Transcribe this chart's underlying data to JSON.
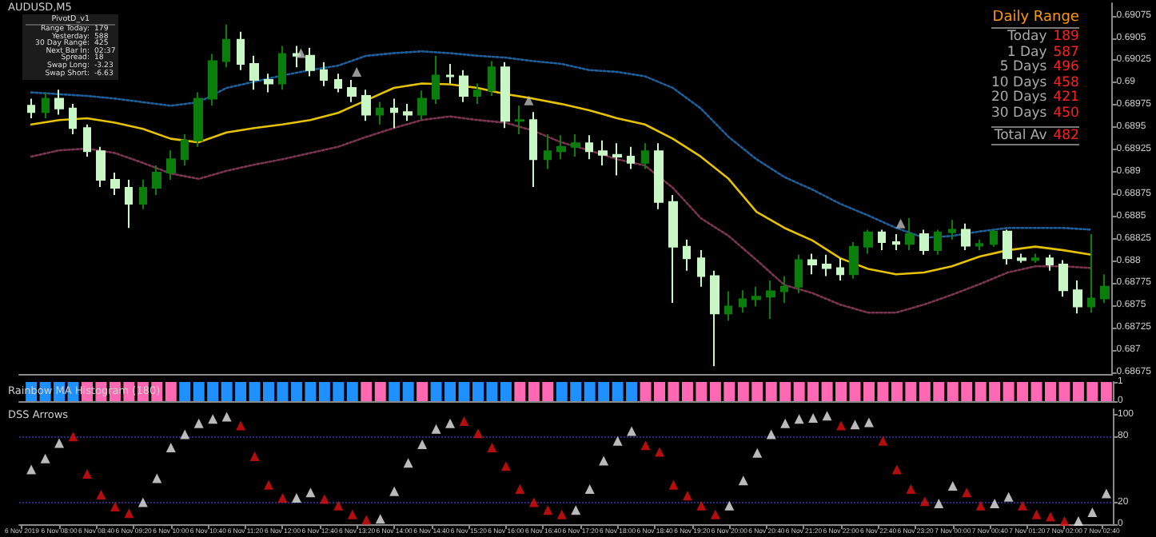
{
  "chart_data": [
    {
      "type": "candlestick",
      "title": "AUDUSD,M5",
      "tick_labels": "y",
      "xlim": [
        "2019-11-06T07:17",
        "2019-11-07T02:52"
      ],
      "ylim": [
        0.68672,
        0.69089
      ],
      "yticks": [
        0.68675,
        0.687,
        0.68725,
        0.6875,
        0.68775,
        0.688,
        0.68825,
        0.6885,
        0.68875,
        0.689,
        0.68925,
        0.6895,
        0.68975,
        0.69,
        0.69025,
        0.6905,
        0.69075
      ],
      "x": [
        "2019-11-06T07:30",
        "2019-11-06T07:45",
        "2019-11-06T08:00",
        "2019-11-06T08:15",
        "2019-11-06T08:30",
        "2019-11-06T08:45",
        "2019-11-06T09:00",
        "2019-11-06T09:15",
        "2019-11-06T09:30",
        "2019-11-06T09:45",
        "2019-11-06T10:00",
        "2019-11-06T10:15",
        "2019-11-06T10:30",
        "2019-11-06T10:45",
        "2019-11-06T11:00",
        "2019-11-06T11:15",
        "2019-11-06T11:30",
        "2019-11-06T11:45",
        "2019-11-06T12:00",
        "2019-11-06T12:15",
        "2019-11-06T12:30",
        "2019-11-06T12:45",
        "2019-11-06T13:00",
        "2019-11-06T13:15",
        "2019-11-06T13:30",
        "2019-11-06T13:45",
        "2019-11-06T14:00",
        "2019-11-06T14:15",
        "2019-11-06T14:30",
        "2019-11-06T14:45",
        "2019-11-06T15:00",
        "2019-11-06T15:15",
        "2019-11-06T15:30",
        "2019-11-06T15:45",
        "2019-11-06T16:00",
        "2019-11-06T16:15",
        "2019-11-06T16:30",
        "2019-11-06T16:45",
        "2019-11-06T17:00",
        "2019-11-06T17:15",
        "2019-11-06T17:30",
        "2019-11-06T17:45",
        "2019-11-06T18:00",
        "2019-11-06T18:15",
        "2019-11-06T18:30",
        "2019-11-06T18:45",
        "2019-11-06T19:00",
        "2019-11-06T19:15",
        "2019-11-06T19:30",
        "2019-11-06T19:45",
        "2019-11-06T20:00",
        "2019-11-06T20:15",
        "2019-11-06T20:30",
        "2019-11-06T20:45",
        "2019-11-06T21:00",
        "2019-11-06T21:15",
        "2019-11-06T21:30",
        "2019-11-06T21:45",
        "2019-11-06T22:00",
        "2019-11-06T22:15",
        "2019-11-06T22:30",
        "2019-11-06T22:45",
        "2019-11-06T23:00",
        "2019-11-06T23:15",
        "2019-11-06T23:30",
        "2019-11-06T23:45",
        "2019-11-07T00:00",
        "2019-11-07T00:15",
        "2019-11-07T00:30",
        "2019-11-07T00:45",
        "2019-11-07T01:00",
        "2019-11-07T01:15",
        "2019-11-07T01:30",
        "2019-11-07T01:45",
        "2019-11-07T02:00",
        "2019-11-07T02:15",
        "2019-11-07T02:30",
        "2019-11-07T02:45"
      ],
      "series": [
        {
          "type": "line",
          "color": "#e6c200",
          "line_style": "solid",
          "marker": "none",
          "x": [
            "2019-11-06T07:30",
            "2019-11-06T08:00",
            "2019-11-06T08:30",
            "2019-11-06T09:00",
            "2019-11-06T09:30",
            "2019-11-06T10:00",
            "2019-11-06T10:30",
            "2019-11-06T11:00",
            "2019-11-06T11:30",
            "2019-11-06T12:00",
            "2019-11-06T12:30",
            "2019-11-06T13:00",
            "2019-11-06T13:30",
            "2019-11-06T14:00",
            "2019-11-06T14:30",
            "2019-11-06T15:00",
            "2019-11-06T15:30",
            "2019-11-06T16:00",
            "2019-11-06T16:30",
            "2019-11-06T17:00",
            "2019-11-06T17:30",
            "2019-11-06T18:00",
            "2019-11-06T18:30",
            "2019-11-06T19:00",
            "2019-11-06T19:30",
            "2019-11-06T20:00",
            "2019-11-06T20:30",
            "2019-11-06T21:00",
            "2019-11-06T21:30",
            "2019-11-06T22:00",
            "2019-11-06T22:30",
            "2019-11-06T23:00",
            "2019-11-06T23:30",
            "2019-11-07T00:00",
            "2019-11-07T00:30",
            "2019-11-07T01:00",
            "2019-11-07T01:30",
            "2019-11-07T02:00",
            "2019-11-07T02:30"
          ],
          "values": [
            0.68953,
            0.68958,
            0.6896,
            0.68955,
            0.68948,
            0.68937,
            0.68933,
            0.68944,
            0.68949,
            0.68953,
            0.68958,
            0.68966,
            0.6898,
            0.68994,
            0.68999,
            0.68998,
            0.68994,
            0.68987,
            0.68982,
            0.68976,
            0.68969,
            0.6896,
            0.68953,
            0.68937,
            0.68917,
            0.68892,
            0.68855,
            0.68837,
            0.68823,
            0.68803,
            0.68791,
            0.68785,
            0.68787,
            0.68794,
            0.68805,
            0.68812,
            0.68816,
            0.68812,
            0.68807
          ]
        },
        {
          "type": "line",
          "color": "#1f5f9a",
          "line_style": "dotted",
          "marker": "none",
          "x": [
            "2019-11-06T07:30",
            "2019-11-06T08:00",
            "2019-11-06T08:30",
            "2019-11-06T09:00",
            "2019-11-06T09:30",
            "2019-11-06T10:00",
            "2019-11-06T10:30",
            "2019-11-06T11:00",
            "2019-11-06T11:30",
            "2019-11-06T12:00",
            "2019-11-06T12:30",
            "2019-11-06T13:00",
            "2019-11-06T13:30",
            "2019-11-06T14:00",
            "2019-11-06T14:30",
            "2019-11-06T15:00",
            "2019-11-06T15:30",
            "2019-11-06T16:00",
            "2019-11-06T16:30",
            "2019-11-06T17:00",
            "2019-11-06T17:30",
            "2019-11-06T18:00",
            "2019-11-06T18:30",
            "2019-11-06T19:00",
            "2019-11-06T19:30",
            "2019-11-06T20:00",
            "2019-11-06T20:30",
            "2019-11-06T21:00",
            "2019-11-06T21:30",
            "2019-11-06T22:00",
            "2019-11-06T22:30",
            "2019-11-06T23:00",
            "2019-11-06T23:30",
            "2019-11-07T00:00",
            "2019-11-07T00:30",
            "2019-11-07T01:00",
            "2019-11-07T01:30",
            "2019-11-07T02:00",
            "2019-11-07T02:30"
          ],
          "values": [
            0.68989,
            0.68987,
            0.68985,
            0.68982,
            0.68978,
            0.68974,
            0.68978,
            0.68994,
            0.69001,
            0.69008,
            0.69014,
            0.69019,
            0.6903,
            0.69033,
            0.69035,
            0.69033,
            0.6903,
            0.69028,
            0.69024,
            0.69021,
            0.69014,
            0.69012,
            0.69007,
            0.68994,
            0.68971,
            0.68939,
            0.68914,
            0.68894,
            0.6888,
            0.68864,
            0.68851,
            0.68837,
            0.68826,
            0.68828,
            0.68833,
            0.68837,
            0.68837,
            0.68837,
            0.68835
          ]
        },
        {
          "type": "line",
          "color": "#7a3550",
          "line_style": "dotted",
          "marker": "none",
          "x": [
            "2019-11-06T07:30",
            "2019-11-06T08:00",
            "2019-11-06T08:30",
            "2019-11-06T09:00",
            "2019-11-06T09:30",
            "2019-11-06T10:00",
            "2019-11-06T10:30",
            "2019-11-06T11:00",
            "2019-11-06T11:30",
            "2019-11-06T12:00",
            "2019-11-06T12:30",
            "2019-11-06T13:00",
            "2019-11-06T13:30",
            "2019-11-06T14:00",
            "2019-11-06T14:30",
            "2019-11-06T15:00",
            "2019-11-06T15:30",
            "2019-11-06T16:00",
            "2019-11-06T16:30",
            "2019-11-06T17:00",
            "2019-11-06T17:30",
            "2019-11-06T18:00",
            "2019-11-06T18:30",
            "2019-11-06T19:00",
            "2019-11-06T19:30",
            "2019-11-06T20:00",
            "2019-11-06T20:30",
            "2019-11-06T21:00",
            "2019-11-06T21:30",
            "2019-11-06T22:00",
            "2019-11-06T22:30",
            "2019-11-06T23:00",
            "2019-11-06T23:30",
            "2019-11-07T00:00",
            "2019-11-07T00:30",
            "2019-11-07T01:00",
            "2019-11-07T01:30",
            "2019-11-07T02:00",
            "2019-11-07T02:30"
          ],
          "values": [
            0.68917,
            0.68924,
            0.68926,
            0.68921,
            0.6891,
            0.68898,
            0.68892,
            0.68901,
            0.68908,
            0.68914,
            0.68921,
            0.68928,
            0.68939,
            0.68949,
            0.68958,
            0.68962,
            0.68958,
            0.68955,
            0.68946,
            0.68933,
            0.68924,
            0.68914,
            0.68907,
            0.68882,
            0.68848,
            0.68828,
            0.68801,
            0.68773,
            0.68764,
            0.68751,
            0.68742,
            0.68742,
            0.68751,
            0.68762,
            0.68774,
            0.68787,
            0.68794,
            0.68794,
            0.68792
          ]
        },
        {
          "type": "candlestick",
          "colors": [
            "#c8f7c5",
            "#0b7d0b",
            "#c8f7c5",
            "#c8f7c5",
            "#c8f7c5",
            "#c8f7c5",
            "#c8f7c5",
            "#c8f7c5",
            "#0b7d0b",
            "#0b7d0b",
            "#0b7d0b",
            "#0b7d0b",
            "#0b7d0b",
            "#0b7d0b",
            "#0b7d0b",
            "#c8f7c5",
            "#c8f7c5",
            "#c8f7c5",
            "#0b7d0b",
            "#c8f7c5",
            "#c8f7c5",
            "#c8f7c5",
            "#c8f7c5",
            "#c8f7c5",
            "#c8f7c5",
            "#0b7d0b",
            "#c8f7c5",
            "#c8f7c5",
            "#0b7d0b",
            "#0b7d0b",
            "#c8f7c5",
            "#c8f7c5",
            "#0b7d0b",
            "#0b7d0b",
            "#c8f7c5",
            "#0b7d0b",
            "#c8f7c5",
            "#0b7d0b",
            "#0b7d0b",
            "#0b7d0b",
            "#c8f7c5",
            "#c8f7c5",
            "#c8f7c5",
            "#c8f7c5",
            "#0b7d0b",
            "#c8f7c5",
            "#c8f7c5",
            "#c8f7c5",
            "#c8f7c5",
            "#c8f7c5",
            "#0b7d0b",
            "#0b7d0b",
            "#0b7d0b",
            "#0b7d0b",
            "#0b7d0b",
            "#0b7d0b",
            "#c8f7c5",
            "#c8f7c5",
            "#c8f7c5",
            "#0b7d0b",
            "#0b7d0b",
            "#c8f7c5",
            "#c8f7c5",
            "#0b7d0b",
            "#c8f7c5",
            "#0b7d0b",
            "#0b7d0b",
            "#c8f7c5",
            "#0b7d0b",
            "#0b7d0b",
            "#c8f7c5",
            "#c8f7c5",
            "#0b7d0b",
            "#c8f7c5",
            "#c8f7c5",
            "#c8f7c5",
            "#0b7d0b",
            "#0b7d0b"
          ],
          "ohlc": [
            [
              0.68974,
              0.68982,
              0.6896,
              0.68967
            ],
            [
              0.68967,
              0.68989,
              0.6896,
              0.68982
            ],
            [
              0.68982,
              0.68992,
              0.68964,
              0.68971
            ],
            [
              0.68971,
              0.68976,
              0.68942,
              0.68949
            ],
            [
              0.68949,
              0.68953,
              0.68917,
              0.68923
            ],
            [
              0.68923,
              0.68928,
              0.68883,
              0.68891
            ],
            [
              0.68891,
              0.68899,
              0.68874,
              0.68882
            ],
            [
              0.68882,
              0.68891,
              0.68837,
              0.68864
            ],
            [
              0.68864,
              0.68891,
              0.68858,
              0.68882
            ],
            [
              0.68882,
              0.68907,
              0.68874,
              0.68899
            ],
            [
              0.68899,
              0.68924,
              0.68891,
              0.68914
            ],
            [
              0.68914,
              0.68942,
              0.68907,
              0.68935
            ],
            [
              0.68935,
              0.68989,
              0.68928,
              0.68982
            ],
            [
              0.68982,
              0.69032,
              0.68974,
              0.69024
            ],
            [
              0.69024,
              0.69065,
              0.69017,
              0.69048
            ],
            [
              0.69048,
              0.69057,
              0.69014,
              0.69021
            ],
            [
              0.69021,
              0.6903,
              0.68992,
              0.69003
            ],
            [
              0.69003,
              0.6901,
              0.68989,
              0.68999
            ],
            [
              0.68999,
              0.69041,
              0.68992,
              0.69032
            ],
            [
              0.69032,
              0.69041,
              0.69017,
              0.6903
            ],
            [
              0.6903,
              0.69039,
              0.69007,
              0.69014
            ],
            [
              0.69014,
              0.69023,
              0.68996,
              0.69003
            ],
            [
              0.69003,
              0.6901,
              0.68989,
              0.68994
            ],
            [
              0.68994,
              0.69003,
              0.68978,
              0.68985
            ],
            [
              0.68985,
              0.68992,
              0.68957,
              0.68964
            ],
            [
              0.68964,
              0.68978,
              0.68953,
              0.68971
            ],
            [
              0.68971,
              0.68982,
              0.68949,
              0.68967
            ],
            [
              0.68967,
              0.68976,
              0.68957,
              0.68964
            ],
            [
              0.68964,
              0.68991,
              0.68958,
              0.68982
            ],
            [
              0.68982,
              0.6903,
              0.68976,
              0.69008
            ],
            [
              0.69008,
              0.69021,
              0.68999,
              0.69007
            ],
            [
              0.69007,
              0.69014,
              0.68978,
              0.68985
            ],
            [
              0.68985,
              0.68999,
              0.68976,
              0.68991
            ],
            [
              0.68991,
              0.69024,
              0.68985,
              0.69017
            ],
            [
              0.69017,
              0.69023,
              0.68949,
              0.68957
            ],
            [
              0.68957,
              0.68974,
              0.68942,
              0.68958
            ],
            [
              0.68958,
              0.68967,
              0.68883,
              0.68914
            ],
            [
              0.68914,
              0.68942,
              0.68903,
              0.68923
            ],
            [
              0.68923,
              0.68941,
              0.68914,
              0.68928
            ],
            [
              0.68928,
              0.68942,
              0.68917,
              0.68932
            ],
            [
              0.68932,
              0.68941,
              0.68914,
              0.68923
            ],
            [
              0.68923,
              0.68935,
              0.68907,
              0.68919
            ],
            [
              0.68919,
              0.68932,
              0.68896,
              0.68917
            ],
            [
              0.68917,
              0.68928,
              0.68903,
              0.6891
            ],
            [
              0.6891,
              0.68932,
              0.68903,
              0.68923
            ],
            [
              0.68923,
              0.68932,
              0.68858,
              0.68866
            ],
            [
              0.68866,
              0.68874,
              0.68753,
              0.68816
            ],
            [
              0.68816,
              0.68824,
              0.68789,
              0.68803
            ],
            [
              0.68803,
              0.68812,
              0.68771,
              0.68783
            ],
            [
              0.68783,
              0.68789,
              0.68682,
              0.68741
            ],
            [
              0.68741,
              0.68766,
              0.68733,
              0.68749
            ],
            [
              0.68749,
              0.68767,
              0.68742,
              0.68757
            ],
            [
              0.68757,
              0.68771,
              0.68749,
              0.6876
            ],
            [
              0.6876,
              0.68778,
              0.68735,
              0.68766
            ],
            [
              0.68766,
              0.68783,
              0.68753,
              0.68771
            ],
            [
              0.68771,
              0.68807,
              0.68764,
              0.68801
            ],
            [
              0.68801,
              0.68808,
              0.68785,
              0.68796
            ],
            [
              0.68796,
              0.68807,
              0.68783,
              0.68792
            ],
            [
              0.68792,
              0.68803,
              0.68778,
              0.68785
            ],
            [
              0.68785,
              0.68821,
              0.6878,
              0.68816
            ],
            [
              0.68816,
              0.68835,
              0.68808,
              0.68832
            ],
            [
              0.68832,
              0.68835,
              0.68812,
              0.68821
            ],
            [
              0.68821,
              0.6883,
              0.68812,
              0.68819
            ],
            [
              0.68819,
              0.68848,
              0.68812,
              0.6883
            ],
            [
              0.6883,
              0.68835,
              0.68807,
              0.68812
            ],
            [
              0.68812,
              0.68835,
              0.68807,
              0.68832
            ],
            [
              0.68832,
              0.68846,
              0.68824,
              0.68835
            ],
            [
              0.68835,
              0.68842,
              0.68812,
              0.68817
            ],
            [
              0.68817,
              0.68824,
              0.68812,
              0.68819
            ],
            [
              0.68819,
              0.68835,
              0.68816,
              0.68833
            ],
            [
              0.68833,
              0.68835,
              0.68796,
              0.68803
            ],
            [
              0.68803,
              0.68808,
              0.68798,
              0.68801
            ],
            [
              0.68801,
              0.68808,
              0.68798,
              0.68803
            ],
            [
              0.68803,
              0.68807,
              0.68789,
              0.68796
            ],
            [
              0.68796,
              0.68801,
              0.6876,
              0.68767
            ],
            [
              0.68767,
              0.68778,
              0.68741,
              0.68749
            ],
            [
              0.68749,
              0.6883,
              0.68742,
              0.68758
            ],
            [
              0.68758,
              0.68785,
              0.68753,
              0.68771
            ]
          ]
        },
        {
          "type": "scatter",
          "color": "#bbbbbb",
          "marker": "triangle",
          "x": [
            "2019-11-06T12:20",
            "2019-11-06T13:20",
            "2019-11-06T16:25",
            "2019-11-06T23:05"
          ],
          "values": [
            0.69033,
            0.69012,
            0.6898,
            0.68842
          ]
        }
      ]
    },
    {
      "type": "bar",
      "title": "Rainbow MA Histogram (180)",
      "tick_labels": "y",
      "xlim": [
        "2019-11-06T07:17",
        "2019-11-07T02:52"
      ],
      "ylim": [
        0,
        1
      ],
      "yticks": [
        0,
        1
      ],
      "x": [
        "2019-11-06T07:30",
        "2019-11-06T07:45",
        "2019-11-06T08:00",
        "2019-11-06T08:15",
        "2019-11-06T08:30",
        "2019-11-06T08:45",
        "2019-11-06T09:00",
        "2019-11-06T09:15",
        "2019-11-06T09:30",
        "2019-11-06T09:45",
        "2019-11-06T10:00",
        "2019-11-06T10:15",
        "2019-11-06T10:30",
        "2019-11-06T10:45",
        "2019-11-06T11:00",
        "2019-11-06T11:15",
        "2019-11-06T11:30",
        "2019-11-06T11:45",
        "2019-11-06T12:00",
        "2019-11-06T12:15",
        "2019-11-06T12:30",
        "2019-11-06T12:45",
        "2019-11-06T13:00",
        "2019-11-06T13:15",
        "2019-11-06T13:30",
        "2019-11-06T13:45",
        "2019-11-06T14:00",
        "2019-11-06T14:15",
        "2019-11-06T14:30",
        "2019-11-06T14:45",
        "2019-11-06T15:00",
        "2019-11-06T15:15",
        "2019-11-06T15:30",
        "2019-11-06T15:45",
        "2019-11-06T16:00",
        "2019-11-06T16:15",
        "2019-11-06T16:30",
        "2019-11-06T16:45",
        "2019-11-06T17:00",
        "2019-11-06T17:15",
        "2019-11-06T17:30",
        "2019-11-06T17:45",
        "2019-11-06T18:00",
        "2019-11-06T18:15",
        "2019-11-06T18:30",
        "2019-11-06T18:45",
        "2019-11-06T19:00",
        "2019-11-06T19:15",
        "2019-11-06T19:30",
        "2019-11-06T19:45",
        "2019-11-06T20:00",
        "2019-11-06T20:15",
        "2019-11-06T20:30",
        "2019-11-06T20:45",
        "2019-11-06T21:00",
        "2019-11-06T21:15",
        "2019-11-06T21:30",
        "2019-11-06T21:45",
        "2019-11-06T22:00",
        "2019-11-06T22:15",
        "2019-11-06T22:30",
        "2019-11-06T22:45",
        "2019-11-06T23:00",
        "2019-11-06T23:15",
        "2019-11-06T23:30",
        "2019-11-06T23:45",
        "2019-11-07T00:00",
        "2019-11-07T00:15",
        "2019-11-07T00:30",
        "2019-11-07T00:45",
        "2019-11-07T01:00",
        "2019-11-07T01:15",
        "2019-11-07T01:30",
        "2019-11-07T01:45",
        "2019-11-07T02:00",
        "2019-11-07T02:15",
        "2019-11-07T02:30",
        "2019-11-07T02:45"
      ],
      "series": [
        {
          "values": [
            1,
            1,
            1,
            1,
            1,
            1,
            1,
            1,
            1,
            1,
            1,
            1,
            1,
            1,
            1,
            1,
            1,
            1,
            1,
            1,
            1,
            1,
            1,
            1,
            1,
            1,
            1,
            1,
            1,
            1,
            1,
            1,
            1,
            1,
            1,
            1,
            1,
            1,
            1,
            1,
            1,
            1,
            1,
            1,
            1,
            1,
            1,
            1,
            1,
            1,
            1,
            1,
            1,
            1,
            1,
            1,
            1,
            1,
            1,
            1,
            1,
            1,
            1,
            1,
            1,
            1,
            1,
            1,
            1,
            1,
            1,
            1,
            1,
            1,
            1,
            1,
            1,
            1
          ],
          "colors": [
            "#1e90ff",
            "#1e90ff",
            "#1e90ff",
            "#1e90ff",
            "#ff69b4",
            "#ff69b4",
            "#ff69b4",
            "#ff69b4",
            "#ff69b4",
            "#ff69b4",
            "#ff69b4",
            "#1e90ff",
            "#1e90ff",
            "#1e90ff",
            "#1e90ff",
            "#1e90ff",
            "#1e90ff",
            "#1e90ff",
            "#1e90ff",
            "#1e90ff",
            "#1e90ff",
            "#1e90ff",
            "#1e90ff",
            "#1e90ff",
            "#ff69b4",
            "#ff69b4",
            "#1e90ff",
            "#1e90ff",
            "#ff69b4",
            "#1e90ff",
            "#1e90ff",
            "#1e90ff",
            "#1e90ff",
            "#1e90ff",
            "#1e90ff",
            "#ff69b4",
            "#ff69b4",
            "#ff69b4",
            "#1e90ff",
            "#1e90ff",
            "#1e90ff",
            "#1e90ff",
            "#1e90ff",
            "#1e90ff",
            "#ff69b4",
            "#ff69b4",
            "#ff69b4",
            "#ff69b4",
            "#ff69b4",
            "#ff69b4",
            "#ff69b4",
            "#ff69b4",
            "#ff69b4",
            "#ff69b4",
            "#ff69b4",
            "#ff69b4",
            "#ff69b4",
            "#ff69b4",
            "#ff69b4",
            "#ff69b4",
            "#ff69b4",
            "#ff69b4",
            "#ff69b4",
            "#ff69b4",
            "#ff69b4",
            "#ff69b4",
            "#ff69b4",
            "#ff69b4",
            "#ff69b4",
            "#ff69b4",
            "#ff69b4",
            "#ff69b4",
            "#ff69b4",
            "#ff69b4",
            "#ff69b4",
            "#ff69b4",
            "#ff69b4",
            "#ff69b4"
          ]
        }
      ]
    },
    {
      "type": "scatter",
      "title": "DSS Arrows",
      "marker": "triangle",
      "xlim": [
        "2019-11-06T07:17",
        "2019-11-07T02:52"
      ],
      "ylim": [
        0,
        105
      ],
      "yticks": [
        0,
        20,
        80,
        100
      ],
      "xticks": [
        {
          "value": "2019-11-06T07:20",
          "label": "6 Nov 2019"
        },
        {
          "value": "2019-11-06T08:00",
          "label": "6 Nov 08:00"
        },
        {
          "value": "2019-11-06T08:40",
          "label": "6 Nov 08:40"
        },
        {
          "value": "2019-11-06T09:20",
          "label": "6 Nov 09:20"
        },
        {
          "value": "2019-11-06T10:00",
          "label": "6 Nov 10:00"
        },
        {
          "value": "2019-11-06T10:40",
          "label": "6 Nov 10:40"
        },
        {
          "value": "2019-11-06T11:20",
          "label": "6 Nov 11:20"
        },
        {
          "value": "2019-11-06T12:00",
          "label": "6 Nov 12:00"
        },
        {
          "value": "2019-11-06T12:40",
          "label": "6 Nov 12:40"
        },
        {
          "value": "2019-11-06T13:20",
          "label": "6 Nov 13:20"
        },
        {
          "value": "2019-11-06T14:00",
          "label": "6 Nov 14:00"
        },
        {
          "value": "2019-11-06T14:40",
          "label": "6 Nov 14:40"
        },
        {
          "value": "2019-11-06T15:20",
          "label": "6 Nov 15:20"
        },
        {
          "value": "2019-11-06T16:00",
          "label": "6 Nov 16:00"
        },
        {
          "value": "2019-11-06T16:40",
          "label": "6 Nov 16:40"
        },
        {
          "value": "2019-11-06T17:20",
          "label": "6 Nov 17:20"
        },
        {
          "value": "2019-11-06T18:00",
          "label": "6 Nov 18:00"
        },
        {
          "value": "2019-11-06T18:40",
          "label": "6 Nov 18:40"
        },
        {
          "value": "2019-11-06T19:20",
          "label": "6 Nov 19:20"
        },
        {
          "value": "2019-11-06T20:00",
          "label": "6 Nov 20:00"
        },
        {
          "value": "2019-11-06T20:40",
          "label": "6 Nov 20:40"
        },
        {
          "value": "2019-11-06T21:20",
          "label": "6 Nov 21:20"
        },
        {
          "value": "2019-11-06T22:00",
          "label": "6 Nov 22:00"
        },
        {
          "value": "2019-11-06T22:40",
          "label": "6 Nov 22:40"
        },
        {
          "value": "2019-11-06T23:20",
          "label": "6 Nov 23:20"
        },
        {
          "value": "2019-11-07T00:00",
          "label": "7 Nov 00:00"
        },
        {
          "value": "2019-11-07T00:40",
          "label": "7 Nov 00:40"
        },
        {
          "value": "2019-11-07T01:20",
          "label": "7 Nov 01:20"
        },
        {
          "value": "2019-11-07T02:00",
          "label": "7 Nov 02:00"
        },
        {
          "value": "2019-11-07T02:40",
          "label": "7 Nov 02:40"
        }
      ],
      "ref_lines": [
        {
          "axis": "y",
          "value": 20,
          "color": "#2a2a80",
          "line_style": "dotted"
        },
        {
          "axis": "y",
          "value": 80,
          "color": "#2a2a80",
          "line_style": "dotted"
        }
      ],
      "x": [
        "2019-11-06T07:30",
        "2019-11-06T07:45",
        "2019-11-06T08:00",
        "2019-11-06T08:15",
        "2019-11-06T08:30",
        "2019-11-06T08:45",
        "2019-11-06T09:00",
        "2019-11-06T09:15",
        "2019-11-06T09:30",
        "2019-11-06T09:45",
        "2019-11-06T10:00",
        "2019-11-06T10:15",
        "2019-11-06T10:30",
        "2019-11-06T10:45",
        "2019-11-06T11:00",
        "2019-11-06T11:15",
        "2019-11-06T11:30",
        "2019-11-06T11:45",
        "2019-11-06T12:00",
        "2019-11-06T12:15",
        "2019-11-06T12:30",
        "2019-11-06T12:45",
        "2019-11-06T13:00",
        "2019-11-06T13:15",
        "2019-11-06T13:30",
        "2019-11-06T13:45",
        "2019-11-06T14:00",
        "2019-11-06T14:15",
        "2019-11-06T14:30",
        "2019-11-06T14:45",
        "2019-11-06T15:00",
        "2019-11-06T15:15",
        "2019-11-06T15:30",
        "2019-11-06T15:45",
        "2019-11-06T16:00",
        "2019-11-06T16:15",
        "2019-11-06T16:30",
        "2019-11-06T16:45",
        "2019-11-06T17:00",
        "2019-11-06T17:15",
        "2019-11-06T17:30",
        "2019-11-06T17:45",
        "2019-11-06T18:00",
        "2019-11-06T18:15",
        "2019-11-06T18:30",
        "2019-11-06T18:45",
        "2019-11-06T19:00",
        "2019-11-06T19:15",
        "2019-11-06T19:30",
        "2019-11-06T19:45",
        "2019-11-06T20:00",
        "2019-11-06T20:15",
        "2019-11-06T20:30",
        "2019-11-06T20:45",
        "2019-11-06T21:00",
        "2019-11-06T21:15",
        "2019-11-06T21:30",
        "2019-11-06T21:45",
        "2019-11-06T22:00",
        "2019-11-06T22:15",
        "2019-11-06T22:30",
        "2019-11-06T22:45",
        "2019-11-06T23:00",
        "2019-11-06T23:15",
        "2019-11-06T23:30",
        "2019-11-06T23:45",
        "2019-11-07T00:00",
        "2019-11-07T00:15",
        "2019-11-07T00:30",
        "2019-11-07T00:45",
        "2019-11-07T01:00",
        "2019-11-07T01:15",
        "2019-11-07T01:30",
        "2019-11-07T01:45",
        "2019-11-07T02:00",
        "2019-11-07T02:15",
        "2019-11-07T02:30",
        "2019-11-07T02:45"
      ],
      "series": [
        {
          "color": "#e8e8e8",
          "values": [
            50,
            60,
            74,
            null,
            null,
            null,
            null,
            null,
            20,
            42,
            70,
            82,
            92,
            96,
            98,
            null,
            null,
            null,
            null,
            24,
            29,
            null,
            null,
            null,
            null,
            5,
            30,
            56,
            73,
            87,
            92,
            null,
            null,
            null,
            null,
            null,
            null,
            null,
            null,
            13,
            32,
            58,
            76,
            85,
            null,
            null,
            null,
            null,
            null,
            null,
            17,
            40,
            65,
            82,
            92,
            96,
            97,
            99,
            null,
            91,
            93,
            null,
            null,
            null,
            null,
            19,
            35,
            null,
            null,
            19,
            25,
            null,
            null,
            null,
            null,
            3,
            11,
            28
          ]
        },
        {
          "color": "#e01010",
          "values": [
            null,
            null,
            null,
            80,
            46,
            27,
            16,
            10,
            null,
            null,
            null,
            null,
            null,
            null,
            null,
            90,
            62,
            36,
            24,
            null,
            null,
            23,
            17,
            9,
            4,
            null,
            null,
            null,
            null,
            null,
            null,
            94,
            83,
            70,
            53,
            32,
            20,
            13,
            9,
            null,
            null,
            null,
            null,
            null,
            72,
            66,
            36,
            26,
            17,
            9,
            null,
            null,
            null,
            null,
            null,
            null,
            null,
            null,
            90,
            null,
            null,
            76,
            50,
            32,
            21,
            null,
            null,
            29,
            17,
            null,
            null,
            17,
            9,
            7,
            3,
            null,
            null,
            null
          ]
        }
      ]
    },
    {
      "type": "other",
      "title": "Daily Range",
      "color": "#ff2020",
      "data_labels": true,
      "categories": [
        "Today",
        "1 Day",
        "5 Days",
        "10 Days",
        "20 Days",
        "30 Days",
        "Total Av"
      ],
      "values": [
        189,
        587,
        496,
        458,
        421,
        450,
        482
      ]
    },
    {
      "type": "other",
      "title": "PivotD_v1",
      "annotations": [
        "Range Today: 179",
        "Yesterday: 588",
        "30 Day Range: 425",
        "Next Bar In: 02:37",
        "Spread: 18",
        "Swap Long: -3.23",
        "Swap Short: -6.63"
      ]
    }
  ]
}
